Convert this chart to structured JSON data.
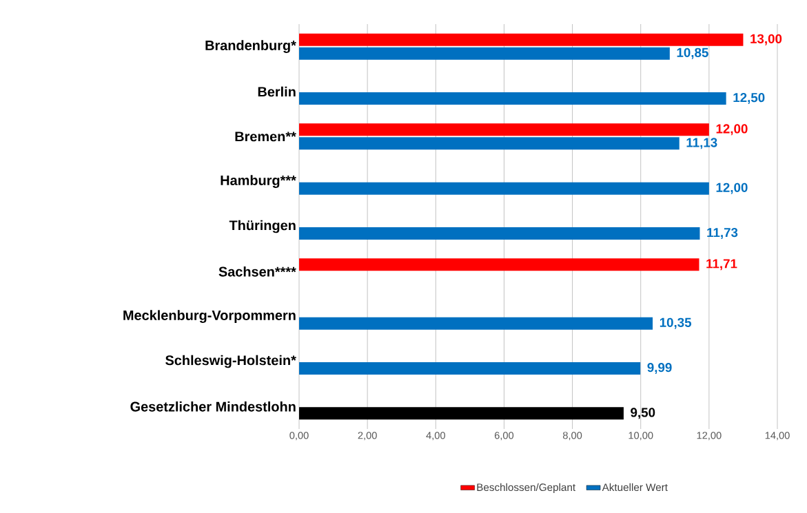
{
  "chart_data": {
    "type": "bar",
    "orientation": "horizontal",
    "categories": [
      "Brandenburg*",
      "Berlin",
      "Bremen**",
      "Hamburg***",
      "Thüringen",
      "Sachsen****",
      "Mecklenburg-Vorpommern",
      "Schleswig-Holstein*****",
      "Gesetzlicher Mindestlohn"
    ],
    "series": [
      {
        "name": "Beschlossen/Geplant",
        "color": "#ff0000",
        "values": [
          13.0,
          null,
          12.0,
          null,
          null,
          11.71,
          null,
          null,
          null
        ],
        "value_labels": [
          "13,00",
          null,
          "12,00",
          null,
          null,
          "11,71",
          null,
          null,
          null
        ]
      },
      {
        "name": "Aktueller Wert",
        "color": "#0070c0",
        "colors": [
          "#0070c0",
          "#0070c0",
          "#0070c0",
          "#0070c0",
          "#0070c0",
          "#0070c0",
          "#0070c0",
          "#0070c0",
          "#000000"
        ],
        "values": [
          10.85,
          12.5,
          11.13,
          12.0,
          11.73,
          null,
          10.35,
          9.99,
          9.5
        ],
        "value_labels": [
          "10,85",
          "12,50",
          "11,13",
          "12,00",
          "11,73",
          null,
          "10,35",
          "9,99",
          "9,50"
        ]
      }
    ],
    "xlim": [
      0,
      14
    ],
    "xticks": [
      {
        "value": 0,
        "label": "0,00"
      },
      {
        "value": 2,
        "label": "2,00"
      },
      {
        "value": 4,
        "label": "4,00"
      },
      {
        "value": 6,
        "label": "6,00"
      },
      {
        "value": 8,
        "label": "8,00"
      },
      {
        "value": 10,
        "label": "10,00"
      },
      {
        "value": 12,
        "label": "12,00"
      },
      {
        "value": 14,
        "label": "14,00"
      }
    ],
    "grid": "x",
    "legend": "bottom"
  }
}
